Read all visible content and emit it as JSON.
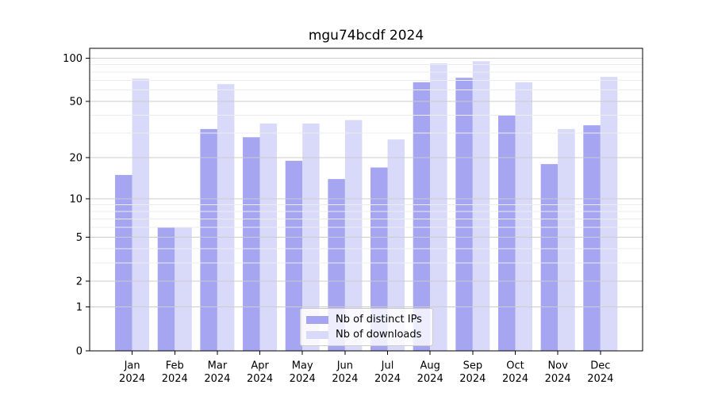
{
  "title": "mgu74bcdf 2024",
  "colors": {
    "grid_major": "#cccccc",
    "grid_minor": "#ededed",
    "axis": "#000000",
    "bar_distinct_ips": "#a5a5f2",
    "bar_downloads": "#d9d9f9"
  },
  "chart_data": {
    "type": "bar",
    "title": "mgu74bcdf 2024",
    "categories": [
      "Jan",
      "Feb",
      "Mar",
      "Apr",
      "May",
      "Jun",
      "Jul",
      "Aug",
      "Sep",
      "Oct",
      "Nov",
      "Dec"
    ],
    "year_label": "2024",
    "series": [
      {
        "name": "Nb of distinct IPs",
        "color": "#a5a5f2",
        "values": [
          15,
          6,
          32,
          28,
          19,
          14,
          17,
          68,
          73,
          40,
          18,
          34
        ]
      },
      {
        "name": "Nb of downloads",
        "color": "#d9d9f9",
        "values": [
          72,
          6,
          66,
          35,
          35,
          37,
          27,
          92,
          95,
          68,
          32,
          74
        ]
      }
    ],
    "xlabel": "",
    "ylabel": "",
    "y_scale": "log1p",
    "y_ticks": [
      100,
      50,
      20,
      10,
      5,
      2,
      1,
      0
    ],
    "y_minor_ticks": [
      3,
      4,
      6,
      7,
      8,
      9,
      30,
      40,
      60,
      70,
      80,
      90
    ],
    "ylim": [
      0,
      117
    ],
    "grid": true,
    "grid_above_bars": true,
    "legend_position": "lower-center"
  }
}
